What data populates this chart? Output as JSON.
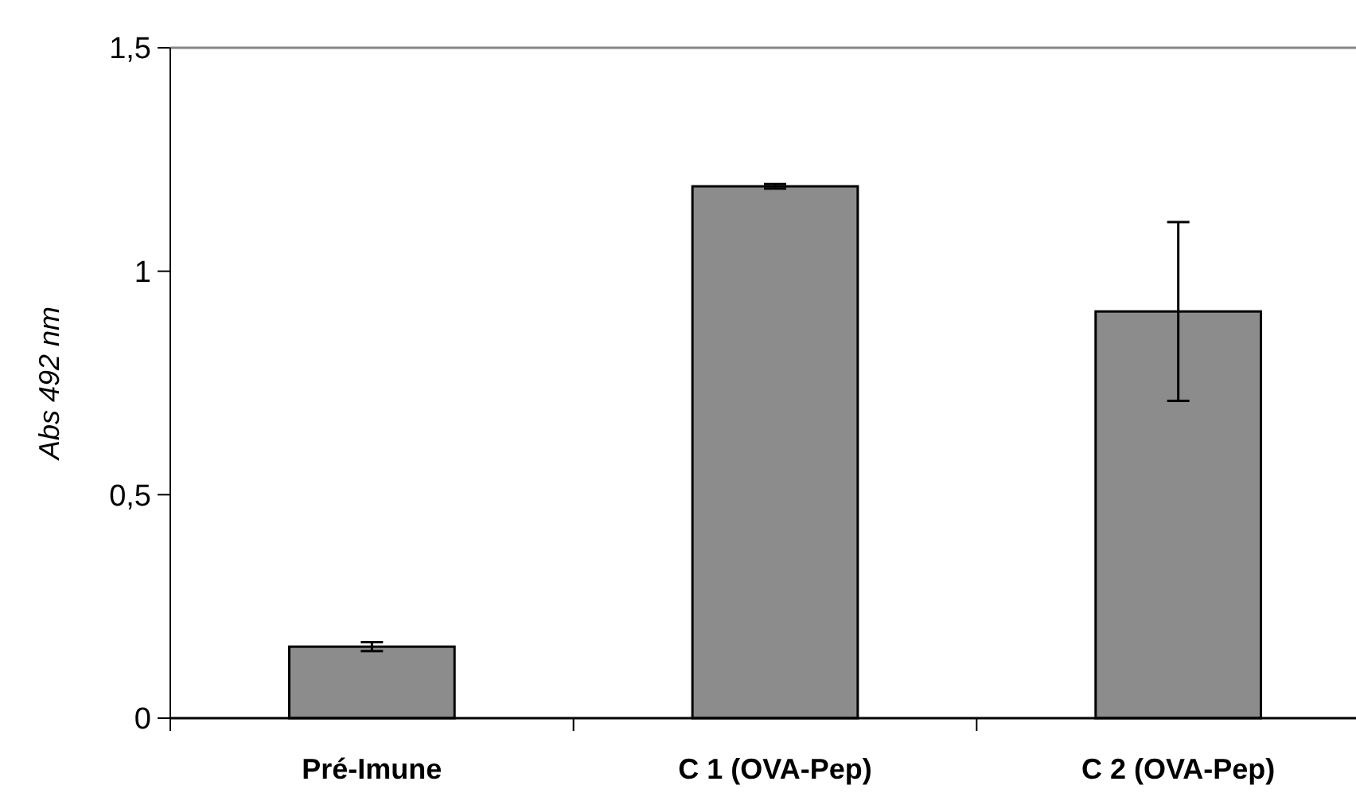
{
  "chart_data": {
    "type": "bar",
    "ylabel": "Abs 492 nm",
    "categories": [
      "Pré-Imune",
      "C 1 (OVA-Pep)",
      "C 2 (OVA-Pep)"
    ],
    "values": [
      0.16,
      1.19,
      0.91
    ],
    "errors": [
      0.01,
      0.005,
      0.2
    ],
    "color": "#8c8c8c",
    "ylim": [
      0,
      1.5
    ],
    "yticks": [
      0,
      {
        "value": 0.5,
        "label": "0,5"
      },
      1,
      {
        "value": 1.5,
        "label": "1,5"
      }
    ],
    "grid": false
  }
}
